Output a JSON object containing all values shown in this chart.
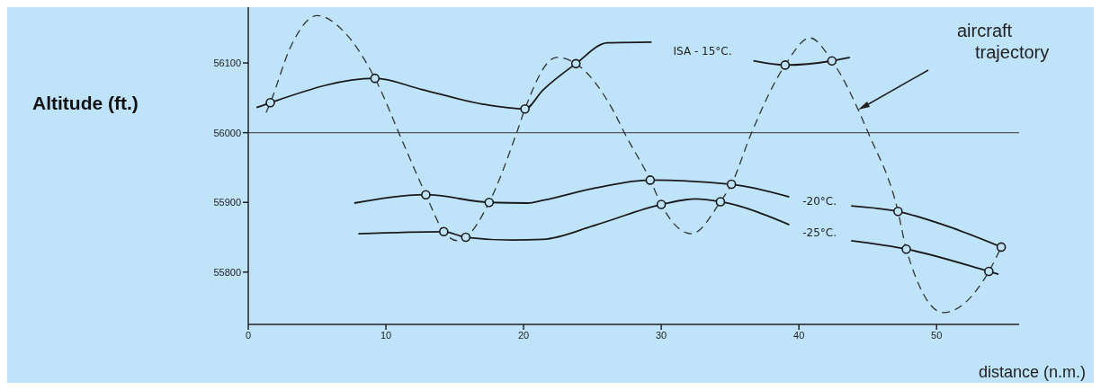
{
  "chart_data": {
    "type": "line",
    "xlabel": "distance (n.m.)",
    "ylabel": "Altitude (ft.)",
    "xlim": [
      0,
      56
    ],
    "ylim": [
      55725,
      56180
    ],
    "xticks": [
      0,
      10,
      20,
      30,
      40,
      50
    ],
    "yticks": [
      55800,
      55900,
      56000,
      56100
    ],
    "grid": false,
    "marker": "none",
    "line_style": "solid",
    "series": [
      {
        "name": "ISA - 15°C.",
        "type": "line",
        "color": "#1a1a1a",
        "x": [
          0.6,
          1.6,
          9.2,
          12.6,
          17.0,
          20.1,
          21.4,
          23.8,
          26.1,
          29.3,
          33,
          36.7,
          39.0,
          42.4,
          43.7
        ],
        "values": [
          56036,
          56043,
          56078,
          56062,
          56041,
          56034,
          56061,
          56099,
          56129,
          56130,
          null,
          56103,
          56097,
          56103,
          56108
        ]
      },
      {
        "name": "-20°C.",
        "type": "line",
        "color": "#1a1a1a",
        "x": [
          7.7,
          12.9,
          17.5,
          20.3,
          21.4,
          25.3,
          29.2,
          35.1,
          39.3,
          41.5,
          43.8,
          47.2,
          51.2,
          54.7
        ],
        "values": [
          55899,
          55911,
          55900,
          55899,
          55903,
          55921,
          55932,
          55926,
          55908,
          null,
          55895,
          55887,
          55863,
          55836
        ]
      },
      {
        "name": "-25°C.",
        "type": "line",
        "color": "#1a1a1a",
        "x": [
          8.0,
          14.2,
          15.8,
          19.2,
          21.4,
          25.3,
          30.0,
          32.5,
          34.3,
          39.3,
          41.5,
          43.8,
          47.8,
          53.8,
          54.5
        ],
        "values": [
          55855,
          55858,
          55850,
          55846,
          55847,
          55868,
          55897,
          55905,
          55901,
          55868,
          null,
          55845,
          55833,
          55801,
          55797
        ]
      },
      {
        "type": "line",
        "line_style": "dashed",
        "color": "#333333",
        "x": [
          1.3,
          1.6,
          3.1,
          5.0,
          6.9,
          9.2,
          11.3,
          12.9,
          14.2,
          15.2,
          15.8,
          17.5,
          19.5,
          20.1,
          22.4,
          23.8,
          26.5,
          27.4,
          29.2,
          30.0,
          32.2,
          34.3,
          35.1,
          36.5,
          39.0,
          40.8,
          42.4,
          45.1,
          47.2,
          47.8,
          50.5,
          53.8,
          54.7
        ],
        "values": [
          56029,
          56043,
          56124,
          56168,
          56146,
          56078,
          55983,
          55911,
          55858,
          55845,
          55850,
          55900,
          56000,
          56034,
          56108,
          56099,
          56032,
          55997,
          55932,
          55897,
          55855,
          55901,
          55926,
          55997,
          56097,
          56136,
          56103,
          55997,
          55887,
          55833,
          55742,
          55801,
          55836
        ]
      },
      {
        "type": "scatter",
        "marker": "circle",
        "color": "#1a1a1a",
        "x": [
          1.6,
          9.2,
          20.1,
          23.8,
          39.0,
          42.4,
          12.9,
          17.5,
          29.2,
          35.1,
          47.2,
          54.7,
          14.2,
          15.8,
          30.0,
          34.3,
          47.8,
          53.8
        ],
        "values": [
          56043,
          56078,
          56034,
          56099,
          56097,
          56103,
          55911,
          55900,
          55932,
          55926,
          55887,
          55836,
          55858,
          55850,
          55897,
          55901,
          55833,
          55801
        ]
      }
    ],
    "ref_lines": [
      {
        "axis": "y",
        "value": 56000,
        "color": "#555555"
      }
    ],
    "annotations": [
      "aircraft trajectory"
    ]
  }
}
